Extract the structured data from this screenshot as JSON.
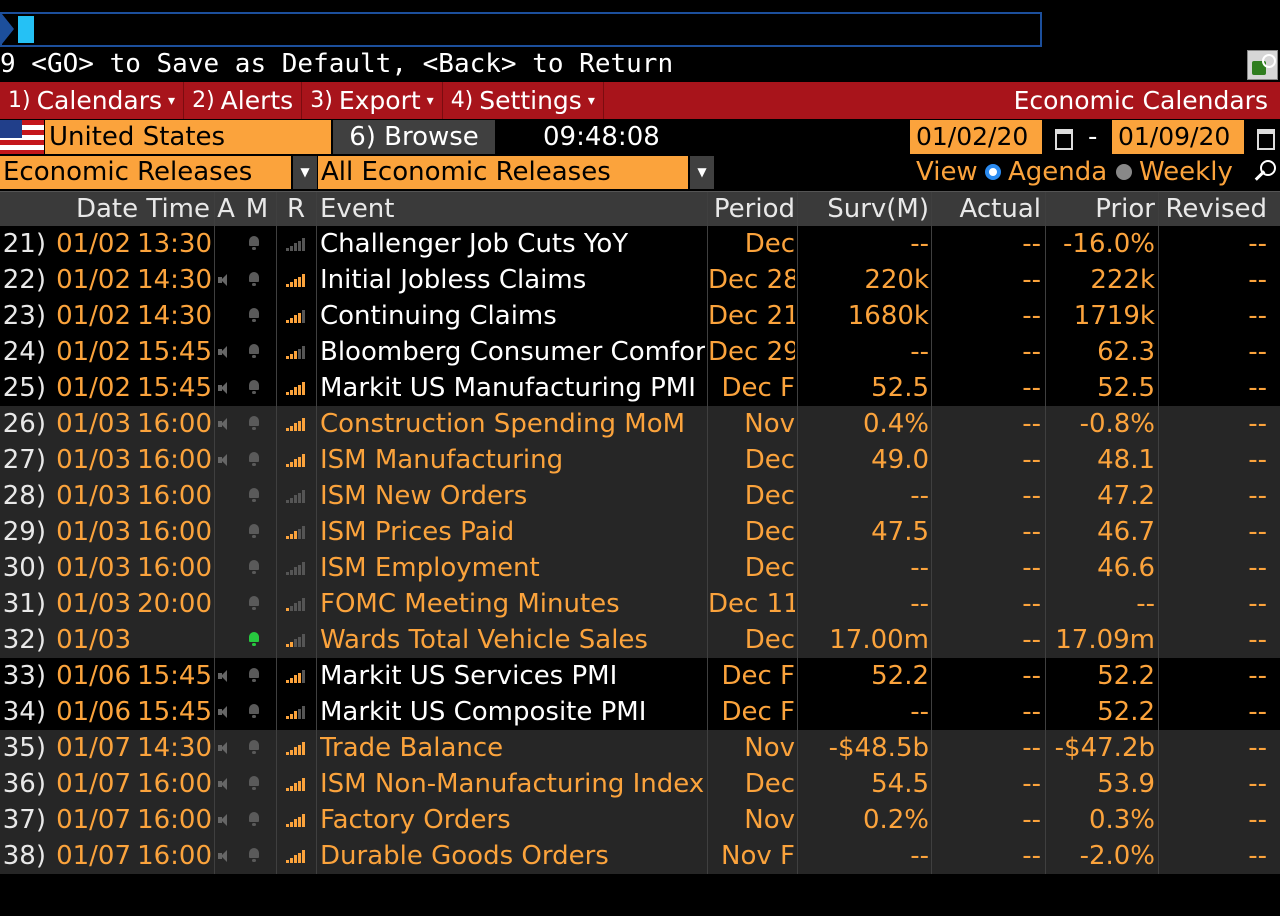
{
  "command": {
    "hint": "9 <GO> to Save as Default, <Back> to Return"
  },
  "menu": {
    "items": [
      {
        "num": "1)",
        "label": "Calendars",
        "caret": "▾"
      },
      {
        "num": "2)",
        "label": "Alerts",
        "caret": ""
      },
      {
        "num": "3)",
        "label": "Export",
        "caret": "▾"
      },
      {
        "num": "4)",
        "label": "Settings",
        "caret": "▾"
      }
    ],
    "title": "Economic Calendars"
  },
  "filters": {
    "country": "United States",
    "browse": "6) Browse",
    "time": "09:48:08",
    "start_date": "01/02/20",
    "date_sep": "-",
    "end_date": "01/09/20",
    "category": "Economic Releases",
    "subcategory": "All Economic Releases",
    "view_label": "View",
    "view_agenda": "Agenda",
    "view_weekly": "Weekly",
    "view_selected": "Agenda"
  },
  "table": {
    "headers": {
      "datetime": "Date Time",
      "a": "A",
      "m": "M",
      "r": "R",
      "event": "Event",
      "period": "Period",
      "surv": "Surv(M)",
      "actual": "Actual",
      "prior": "Prior",
      "revised": "Revised"
    },
    "rows": [
      {
        "idx": "21)",
        "date": "01/02",
        "time": "13:30",
        "audio": false,
        "alert": "grey",
        "relevance": 0,
        "event": "Challenger Job Cuts YoY",
        "period": "Dec",
        "surv": "--",
        "actual": "--",
        "prior": "-16.0%",
        "revised": "--",
        "band": 0
      },
      {
        "idx": "22)",
        "date": "01/02",
        "time": "14:30",
        "audio": true,
        "alert": "grey",
        "relevance": 5,
        "event": "Initial Jobless Claims",
        "period": "Dec 28",
        "surv": "220k",
        "actual": "--",
        "prior": "222k",
        "revised": "--",
        "band": 0
      },
      {
        "idx": "23)",
        "date": "01/02",
        "time": "14:30",
        "audio": false,
        "alert": "grey",
        "relevance": 4,
        "event": "Continuing Claims",
        "period": "Dec 21",
        "surv": "1680k",
        "actual": "--",
        "prior": "1719k",
        "revised": "--",
        "band": 0
      },
      {
        "idx": "24)",
        "date": "01/02",
        "time": "15:45",
        "audio": true,
        "alert": "grey",
        "relevance": 3,
        "event": "Bloomberg Consumer Comfort",
        "period": "Dec 29",
        "surv": "--",
        "actual": "--",
        "prior": "62.3",
        "revised": "--",
        "band": 0
      },
      {
        "idx": "25)",
        "date": "01/02",
        "time": "15:45",
        "audio": true,
        "alert": "grey",
        "relevance": 5,
        "event": "Markit US Manufacturing PMI",
        "period": "Dec F",
        "surv": "52.5",
        "actual": "--",
        "prior": "52.5",
        "revised": "--",
        "band": 0
      },
      {
        "idx": "26)",
        "date": "01/03",
        "time": "16:00",
        "audio": true,
        "alert": "grey",
        "relevance": 5,
        "event": "Construction Spending MoM",
        "period": "Nov",
        "surv": "0.4%",
        "actual": "--",
        "prior": "-0.8%",
        "revised": "--",
        "band": 1
      },
      {
        "idx": "27)",
        "date": "01/03",
        "time": "16:00",
        "audio": true,
        "alert": "grey",
        "relevance": 5,
        "event": "ISM Manufacturing",
        "period": "Dec",
        "surv": "49.0",
        "actual": "--",
        "prior": "48.1",
        "revised": "--",
        "band": 1
      },
      {
        "idx": "28)",
        "date": "01/03",
        "time": "16:00",
        "audio": false,
        "alert": "grey",
        "relevance": 0,
        "event": "ISM New Orders",
        "period": "Dec",
        "surv": "--",
        "actual": "--",
        "prior": "47.2",
        "revised": "--",
        "band": 1
      },
      {
        "idx": "29)",
        "date": "01/03",
        "time": "16:00",
        "audio": false,
        "alert": "grey",
        "relevance": 3,
        "event": "ISM Prices Paid",
        "period": "Dec",
        "surv": "47.5",
        "actual": "--",
        "prior": "46.7",
        "revised": "--",
        "band": 1
      },
      {
        "idx": "30)",
        "date": "01/03",
        "time": "16:00",
        "audio": false,
        "alert": "grey",
        "relevance": 0,
        "event": "ISM Employment",
        "period": "Dec",
        "surv": "--",
        "actual": "--",
        "prior": "46.6",
        "revised": "--",
        "band": 1
      },
      {
        "idx": "31)",
        "date": "01/03",
        "time": "20:00",
        "audio": false,
        "alert": "grey",
        "relevance": 1,
        "event": "FOMC Meeting Minutes",
        "period": "Dec 11",
        "surv": "--",
        "actual": "--",
        "prior": "--",
        "revised": "--",
        "band": 1
      },
      {
        "idx": "32)",
        "date": "01/03",
        "time": "",
        "audio": false,
        "alert": "green",
        "relevance": 2,
        "event": "Wards Total Vehicle Sales",
        "period": "Dec",
        "surv": "17.00m",
        "actual": "--",
        "prior": "17.09m",
        "revised": "--",
        "band": 1
      },
      {
        "idx": "33)",
        "date": "01/06",
        "time": "15:45",
        "audio": true,
        "alert": "grey",
        "relevance": 4,
        "event": "Markit US Services PMI",
        "period": "Dec F",
        "surv": "52.2",
        "actual": "--",
        "prior": "52.2",
        "revised": "--",
        "band": 0
      },
      {
        "idx": "34)",
        "date": "01/06",
        "time": "15:45",
        "audio": true,
        "alert": "grey",
        "relevance": 3,
        "event": "Markit US Composite PMI",
        "period": "Dec F",
        "surv": "--",
        "actual": "--",
        "prior": "52.2",
        "revised": "--",
        "band": 0
      },
      {
        "idx": "35)",
        "date": "01/07",
        "time": "14:30",
        "audio": true,
        "alert": "grey",
        "relevance": 5,
        "event": "Trade Balance",
        "period": "Nov",
        "surv": "-$48.5b",
        "actual": "--",
        "prior": "-$47.2b",
        "revised": "--",
        "band": 1
      },
      {
        "idx": "36)",
        "date": "01/07",
        "time": "16:00",
        "audio": true,
        "alert": "grey",
        "relevance": 5,
        "event": "ISM Non-Manufacturing Index",
        "period": "Dec",
        "surv": "54.5",
        "actual": "--",
        "prior": "53.9",
        "revised": "--",
        "band": 1
      },
      {
        "idx": "37)",
        "date": "01/07",
        "time": "16:00",
        "audio": true,
        "alert": "grey",
        "relevance": 5,
        "event": "Factory Orders",
        "period": "Nov",
        "surv": "0.2%",
        "actual": "--",
        "prior": "0.3%",
        "revised": "--",
        "band": 1
      },
      {
        "idx": "38)",
        "date": "01/07",
        "time": "16:00",
        "audio": true,
        "alert": "grey",
        "relevance": 5,
        "event": "Durable Goods Orders",
        "period": "Nov F",
        "surv": "--",
        "actual": "--",
        "prior": "-2.0%",
        "revised": "--",
        "band": 1
      }
    ]
  },
  "colors": {
    "accent_orange": "#fba33c",
    "menu_red": "#a8141b",
    "command_blue": "#1c4f9c",
    "cursor_cyan": "#25c1f5",
    "alert_green": "#27c93f"
  }
}
